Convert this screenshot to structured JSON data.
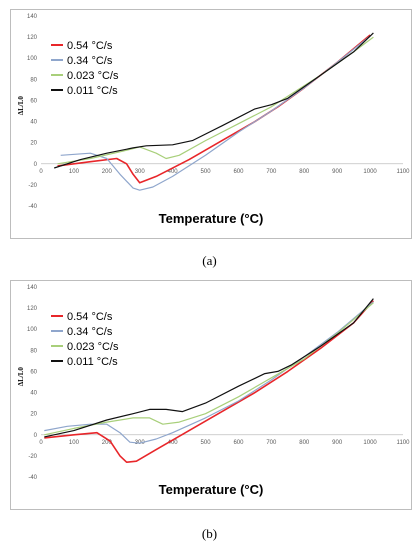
{
  "chart_data": [
    {
      "type": "line",
      "caption": "(a)",
      "xlabel": "Temperature (°C)",
      "ylabel": "ΔL/L0",
      "xlim": [
        0,
        1100
      ],
      "ylim": [
        -40,
        140
      ],
      "xticks": [
        0,
        100,
        200,
        300,
        400,
        500,
        600,
        700,
        800,
        900,
        1000,
        1100
      ],
      "yticks": [
        -40,
        -20,
        0,
        20,
        40,
        60,
        80,
        100,
        120,
        140
      ],
      "grid": false,
      "legend_position": "top-left",
      "series": [
        {
          "name": "0.54 °C/s",
          "color": "#e8262a",
          "points": [
            [
              50,
              -2
            ],
            [
              150,
              2
            ],
            [
              230,
              5
            ],
            [
              260,
              0
            ],
            [
              280,
              -10
            ],
            [
              300,
              -18
            ],
            [
              350,
              -12
            ],
            [
              450,
              4
            ],
            [
              550,
              22
            ],
            [
              650,
              40
            ],
            [
              720,
              54
            ],
            [
              800,
              72
            ],
            [
              900,
              96
            ],
            [
              1000,
              122
            ]
          ]
        },
        {
          "name": "0.34 °C/s",
          "color": "#8fa6cc",
          "points": [
            [
              60,
              8
            ],
            [
              150,
              10
            ],
            [
              200,
              5
            ],
            [
              240,
              -10
            ],
            [
              280,
              -23
            ],
            [
              300,
              -25
            ],
            [
              340,
              -22
            ],
            [
              400,
              -12
            ],
            [
              500,
              8
            ],
            [
              600,
              30
            ],
            [
              700,
              50
            ],
            [
              800,
              72
            ],
            [
              900,
              96
            ],
            [
              1000,
              121
            ]
          ]
        },
        {
          "name": "0.023 °C/s",
          "color": "#a8cf7a",
          "points": [
            [
              50,
              0
            ],
            [
              150,
              5
            ],
            [
              250,
              12
            ],
            [
              300,
              16
            ],
            [
              350,
              10
            ],
            [
              380,
              5
            ],
            [
              420,
              8
            ],
            [
              500,
              22
            ],
            [
              600,
              38
            ],
            [
              700,
              54
            ],
            [
              760,
              66
            ],
            [
              850,
              84
            ],
            [
              950,
              106
            ],
            [
              1010,
              120
            ]
          ]
        },
        {
          "name": "0.011 °C/s",
          "color": "#111111",
          "points": [
            [
              40,
              -4
            ],
            [
              120,
              4
            ],
            [
              200,
              10
            ],
            [
              280,
              15
            ],
            [
              320,
              17
            ],
            [
              400,
              18
            ],
            [
              460,
              22
            ],
            [
              550,
              36
            ],
            [
              650,
              52
            ],
            [
              700,
              56
            ],
            [
              750,
              62
            ],
            [
              850,
              84
            ],
            [
              950,
              106
            ],
            [
              1010,
              124
            ]
          ]
        }
      ]
    },
    {
      "type": "line",
      "caption": "(b)",
      "xlabel": "Temperature (°C)",
      "ylabel": "ΔL/L0",
      "xlim": [
        0,
        1100
      ],
      "ylim": [
        -40,
        140
      ],
      "xticks": [
        0,
        100,
        200,
        300,
        400,
        500,
        600,
        700,
        800,
        900,
        1000,
        1100
      ],
      "yticks": [
        -40,
        -20,
        0,
        20,
        40,
        60,
        80,
        100,
        120,
        140
      ],
      "grid": false,
      "legend_position": "top-left",
      "series": [
        {
          "name": "0.54 °C/s",
          "color": "#e8262a",
          "points": [
            [
              10,
              -3
            ],
            [
              100,
              0
            ],
            [
              170,
              2
            ],
            [
              210,
              -6
            ],
            [
              240,
              -20
            ],
            [
              260,
              -26
            ],
            [
              290,
              -25
            ],
            [
              350,
              -14
            ],
            [
              450,
              4
            ],
            [
              550,
              22
            ],
            [
              650,
              40
            ],
            [
              750,
              60
            ],
            [
              850,
              82
            ],
            [
              950,
              106
            ],
            [
              1010,
              127
            ]
          ]
        },
        {
          "name": "0.34 °C/s",
          "color": "#8fa6cc",
          "points": [
            [
              10,
              4
            ],
            [
              80,
              8
            ],
            [
              150,
              10
            ],
            [
              200,
              10
            ],
            [
              240,
              2
            ],
            [
              270,
              -7
            ],
            [
              300,
              -8
            ],
            [
              350,
              -4
            ],
            [
              400,
              2
            ],
            [
              500,
              16
            ],
            [
              600,
              32
            ],
            [
              700,
              52
            ],
            [
              800,
              74
            ],
            [
              900,
              97
            ],
            [
              1010,
              126
            ]
          ]
        },
        {
          "name": "0.023 °C/s",
          "color": "#a8cf7a",
          "points": [
            [
              10,
              0
            ],
            [
              100,
              6
            ],
            [
              200,
              12
            ],
            [
              280,
              16
            ],
            [
              330,
              16
            ],
            [
              370,
              10
            ],
            [
              420,
              12
            ],
            [
              500,
              20
            ],
            [
              600,
              36
            ],
            [
              700,
              54
            ],
            [
              800,
              72
            ],
            [
              900,
              96
            ],
            [
              1010,
              125
            ]
          ]
        },
        {
          "name": "0.011 °C/s",
          "color": "#111111",
          "points": [
            [
              10,
              -2
            ],
            [
              100,
              4
            ],
            [
              200,
              14
            ],
            [
              280,
              20
            ],
            [
              330,
              24
            ],
            [
              380,
              24
            ],
            [
              430,
              22
            ],
            [
              500,
              30
            ],
            [
              600,
              46
            ],
            [
              680,
              58
            ],
            [
              720,
              60
            ],
            [
              760,
              66
            ],
            [
              850,
              84
            ],
            [
              950,
              106
            ],
            [
              1010,
              129
            ]
          ]
        }
      ]
    }
  ]
}
